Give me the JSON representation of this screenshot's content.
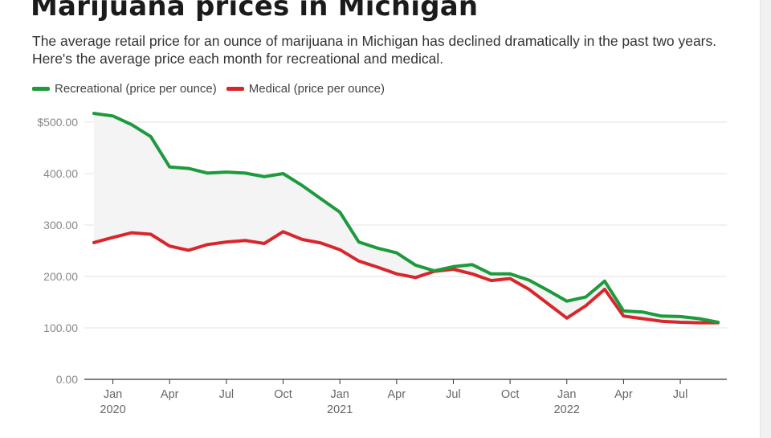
{
  "title": "Marijuana prices in Michigan",
  "subtitle": "The average retail price for an ounce of marijuana in Michigan has declined dramatically in the past two years. Here's the average price each month for recreational and medical.",
  "colors": {
    "recreational": "#1c9a3c",
    "medical": "#d9262c",
    "fill_between": "#f4f4f4"
  },
  "chart_data": {
    "type": "line",
    "title": "Marijuana prices in Michigan",
    "xlabel": "",
    "ylabel": "",
    "ylim": [
      0,
      500
    ],
    "grid": true,
    "legend_position": "top-left",
    "y_ticks": [
      {
        "value": 500,
        "label": "$500.00"
      },
      {
        "value": 400,
        "label": "400.00"
      },
      {
        "value": 300,
        "label": "300.00"
      },
      {
        "value": 200,
        "label": "200.00"
      },
      {
        "value": 100,
        "label": "100.00"
      },
      {
        "value": 0,
        "label": "0.00"
      }
    ],
    "x_ticks": [
      {
        "value": "2020-01",
        "label": "Jan",
        "year": "2020"
      },
      {
        "value": "2020-04",
        "label": "Apr",
        "year": ""
      },
      {
        "value": "2020-07",
        "label": "Jul",
        "year": ""
      },
      {
        "value": "2020-10",
        "label": "Oct",
        "year": ""
      },
      {
        "value": "2021-01",
        "label": "Jan",
        "year": "2021"
      },
      {
        "value": "2021-04",
        "label": "Apr",
        "year": ""
      },
      {
        "value": "2021-07",
        "label": "Jul",
        "year": ""
      },
      {
        "value": "2021-10",
        "label": "Oct",
        "year": ""
      },
      {
        "value": "2022-01",
        "label": "Jan",
        "year": "2022"
      },
      {
        "value": "2022-04",
        "label": "Apr",
        "year": ""
      },
      {
        "value": "2022-07",
        "label": "Jul",
        "year": ""
      }
    ],
    "x": [
      "2019-12",
      "2020-01",
      "2020-02",
      "2020-03",
      "2020-04",
      "2020-05",
      "2020-06",
      "2020-07",
      "2020-08",
      "2020-09",
      "2020-10",
      "2020-11",
      "2020-12",
      "2021-01",
      "2021-02",
      "2021-03",
      "2021-04",
      "2021-05",
      "2021-06",
      "2021-07",
      "2021-08",
      "2021-09",
      "2021-10",
      "2021-11",
      "2021-12",
      "2022-01",
      "2022-02",
      "2022-03",
      "2022-04",
      "2022-05",
      "2022-06",
      "2022-07",
      "2022-08",
      "2022-09"
    ],
    "series": [
      {
        "name": "Recreational (price per ounce)",
        "color": "#1c9a3c",
        "values": [
          517,
          512,
          495,
          472,
          413,
          410,
          401,
          403,
          401,
          394,
          400,
          377,
          351,
          325,
          267,
          255,
          246,
          222,
          211,
          219,
          223,
          205,
          205,
          193,
          173,
          152,
          160,
          191,
          133,
          131,
          123,
          122,
          118,
          111
        ]
      },
      {
        "name": "Medical (price per ounce)",
        "color": "#d9262c",
        "values": [
          266,
          276,
          285,
          282,
          259,
          251,
          262,
          267,
          270,
          264,
          287,
          272,
          265,
          252,
          230,
          218,
          205,
          198,
          210,
          214,
          205,
          192,
          196,
          175,
          147,
          119,
          143,
          175,
          123,
          118,
          113,
          111,
          110,
          110
        ]
      }
    ]
  }
}
